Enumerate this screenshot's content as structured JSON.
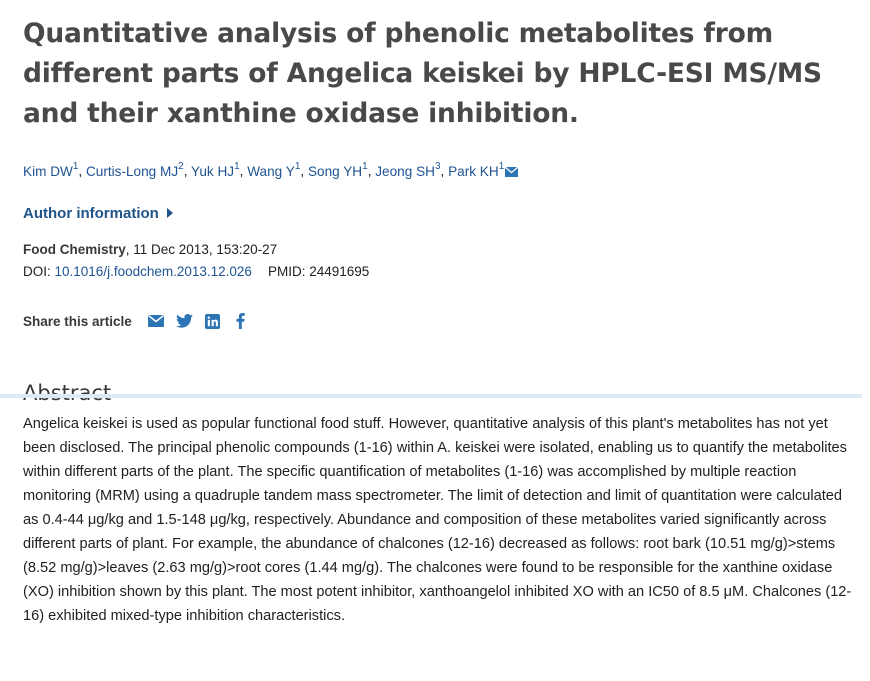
{
  "article": {
    "title": "Quantitative analysis of phenolic metabolites from different parts of Angelica keiskei by HPLC-ESI MS/MS and their xanthine oxidase inhibition.",
    "authors": [
      {
        "name": "Kim DW",
        "aff": "1"
      },
      {
        "name": "Curtis-Long MJ",
        "aff": "2"
      },
      {
        "name": "Yuk HJ",
        "aff": "1"
      },
      {
        "name": "Wang Y",
        "aff": "1"
      },
      {
        "name": "Song YH",
        "aff": "1"
      },
      {
        "name": "Jeong SH",
        "aff": "3"
      },
      {
        "name": "Park KH",
        "aff": "1"
      }
    ],
    "author_info_label": "Author information",
    "journal": "Food Chemistry",
    "citation_rest": ", 11 Dec 2013, 153:20-27",
    "doi_label": "DOI: ",
    "doi": "10.1016/j.foodchem.2013.12.026",
    "pmid_label": "PMID: ",
    "pmid": "24491695",
    "share_label": "Share this article",
    "share_icons": [
      "email-icon",
      "twitter-icon",
      "linkedin-icon",
      "facebook-icon"
    ],
    "abstract_heading": "Abstract",
    "abstract": "Angelica keiskei is used as popular functional food stuff. However, quantitative analysis of this plant's metabolites has not yet been disclosed. The principal phenolic compounds (1-16) within A. keiskei were isolated, enabling us to quantify the metabolites within different parts of the plant. The specific quantification of metabolites (1-16) was accomplished by multiple reaction monitoring (MRM) using a quadruple tandem mass spectrometer. The limit of detection and limit of quantitation were calculated as 0.4-44 μg/kg and 1.5-148 μg/kg, respectively. Abundance and composition of these metabolites varied significantly across different parts of plant. For example, the abundance of chalcones (12-16) decreased as follows: root bark (10.51 mg/g)>stems (8.52 mg/g)>leaves (2.63 mg/g)>root cores (1.44 mg/g). The chalcones were found to be responsible for the xanthine oxidase (XO) inhibition shown by this plant. The most potent inhibitor, xanthoangelol inhibited XO with an IC50 of 8.5 μM. Chalcones (12-16) exhibited mixed-type inhibition characteristics."
  },
  "colors": {
    "link": "#205493",
    "title": "#494949",
    "rule": "#dceaf3",
    "icon": "#2c74b3"
  }
}
